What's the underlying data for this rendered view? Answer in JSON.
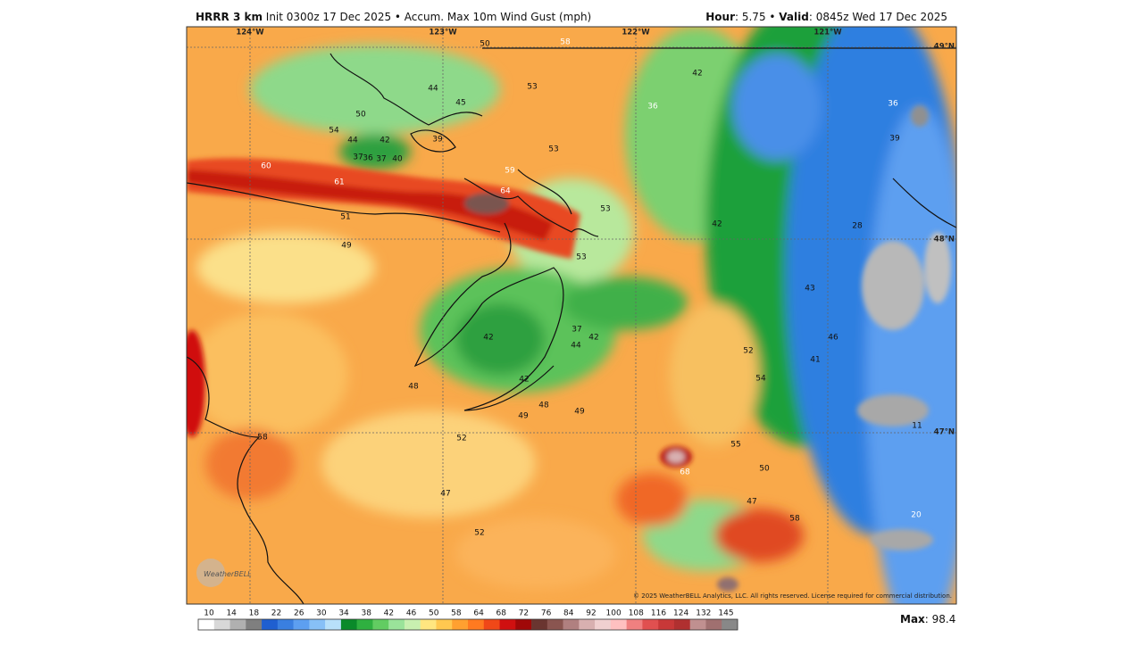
{
  "header": {
    "model": "HRRR 3 km",
    "description": "Init 0300z 17 Dec 2025 • Accum. Max 10m Wind Gust (mph)",
    "hour_label": "Hour",
    "hour_value": ": 5.75 •",
    "valid_label": "Valid",
    "valid_value": ": 0845z Wed 17 Dec 2025"
  },
  "map": {
    "longitudes": [
      "124°W",
      "123°W",
      "122°W",
      "121°W"
    ],
    "latitudes": [
      "49°N",
      "48°N",
      "47°N"
    ],
    "labels": [
      50,
      58,
      53,
      44,
      45,
      50,
      54,
      44,
      42,
      39,
      53,
      37,
      36,
      37,
      40,
      60,
      59,
      64,
      61,
      53,
      51,
      49,
      53,
      42,
      42,
      36,
      36,
      39,
      28,
      43,
      46,
      41,
      52,
      54,
      42,
      37,
      44,
      42,
      42,
      48,
      48,
      49,
      49,
      52,
      58,
      55,
      50,
      68,
      47,
      47,
      58,
      52,
      11,
      20
    ],
    "copyright": "© 2025 WeatherBELL Analytics, LLC. All rights reserved. License required for commercial distribution.",
    "logo": "WeatherBELL"
  },
  "colorbar": {
    "labels": [
      10,
      14,
      18,
      22,
      26,
      30,
      34,
      38,
      42,
      46,
      50,
      58,
      64,
      68,
      72,
      76,
      84,
      92,
      100,
      108,
      116,
      124,
      132,
      145
    ],
    "colors": [
      "#ffffff",
      "#d8d8d8",
      "#b0b0b0",
      "#7f7f7f",
      "#1f5fd0",
      "#3a7fe0",
      "#5d9ff0",
      "#87c0f7",
      "#b8e0fa",
      "#0a8a2a",
      "#2fb040",
      "#62cc62",
      "#9ae39a",
      "#c8f0b0",
      "#ffe680",
      "#ffc850",
      "#ffa030",
      "#ff7a20",
      "#f04818",
      "#d01010",
      "#a00808",
      "#6a3530",
      "#8a5550",
      "#b08080",
      "#d8b0b0",
      "#f0d0d0",
      "#ffc0c0",
      "#f08080",
      "#e05050",
      "#c83838",
      "#b03030",
      "#c09090",
      "#a07070",
      "#888888"
    ],
    "max_label": "Max",
    "max_value": ": 98.4"
  }
}
